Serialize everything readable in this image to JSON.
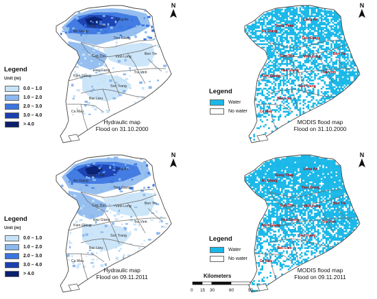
{
  "panels": [
    {
      "id": "hydraulic-2000",
      "type": "hydraulic",
      "caption": [
        "Hydraulic map",
        "Flood on 31.10.2000"
      ],
      "flood_extent": 0.42
    },
    {
      "id": "modis-2000",
      "type": "modis",
      "caption": [
        "MODIS flood map",
        "Flood on 31.10.2000"
      ],
      "flood_extent": 0.55
    },
    {
      "id": "hydraulic-2011",
      "type": "hydraulic",
      "caption": [
        "Hydraulic map",
        "Flood on 09.11.2011"
      ],
      "flood_extent": 0.5
    },
    {
      "id": "modis-2011",
      "type": "modis",
      "caption": [
        "MODIS flood map",
        "Flood on 09.11.2011"
      ],
      "flood_extent": 0.68
    }
  ],
  "north_label": "N",
  "provinces": [
    "An Giang",
    "Dong Thap",
    "Long An",
    "Tien Giang",
    "Can Tho",
    "Vinh Long",
    "Ben Tre",
    "Hau Giang",
    "Kien Giang",
    "Tra Vinh",
    "Soc Trang",
    "Bac Lieu",
    "Ca Mau"
  ],
  "hydraulic_legend": {
    "title": "Legend",
    "unit": "Unit (m)",
    "items": [
      {
        "label": "0.0 – 1.0",
        "color": "#c6e2f7"
      },
      {
        "label": "1.0 – 2.0",
        "color": "#8bb8ee"
      },
      {
        "label": "2.0 – 3.0",
        "color": "#3a74e0"
      },
      {
        "label": "3.0 – 4.0",
        "color": "#1a3fb0"
      },
      {
        "label": "> 4.0",
        "color": "#0a1f6e"
      }
    ]
  },
  "modis_legend": {
    "title": "Legend",
    "items": [
      {
        "label": "Water",
        "color": "#1ab8e8"
      },
      {
        "label": "No water",
        "color": "#ffffff"
      }
    ]
  },
  "scale_bar": {
    "title": "Kilometers",
    "ticks": [
      "0",
      "15",
      "30",
      "60",
      "90"
    ]
  },
  "colors": {
    "water_modis": "#1ab8e8",
    "boundary": "#6a6a6a",
    "label_modis": "#c00000",
    "label_hydraulic": "#2a2a2a"
  }
}
